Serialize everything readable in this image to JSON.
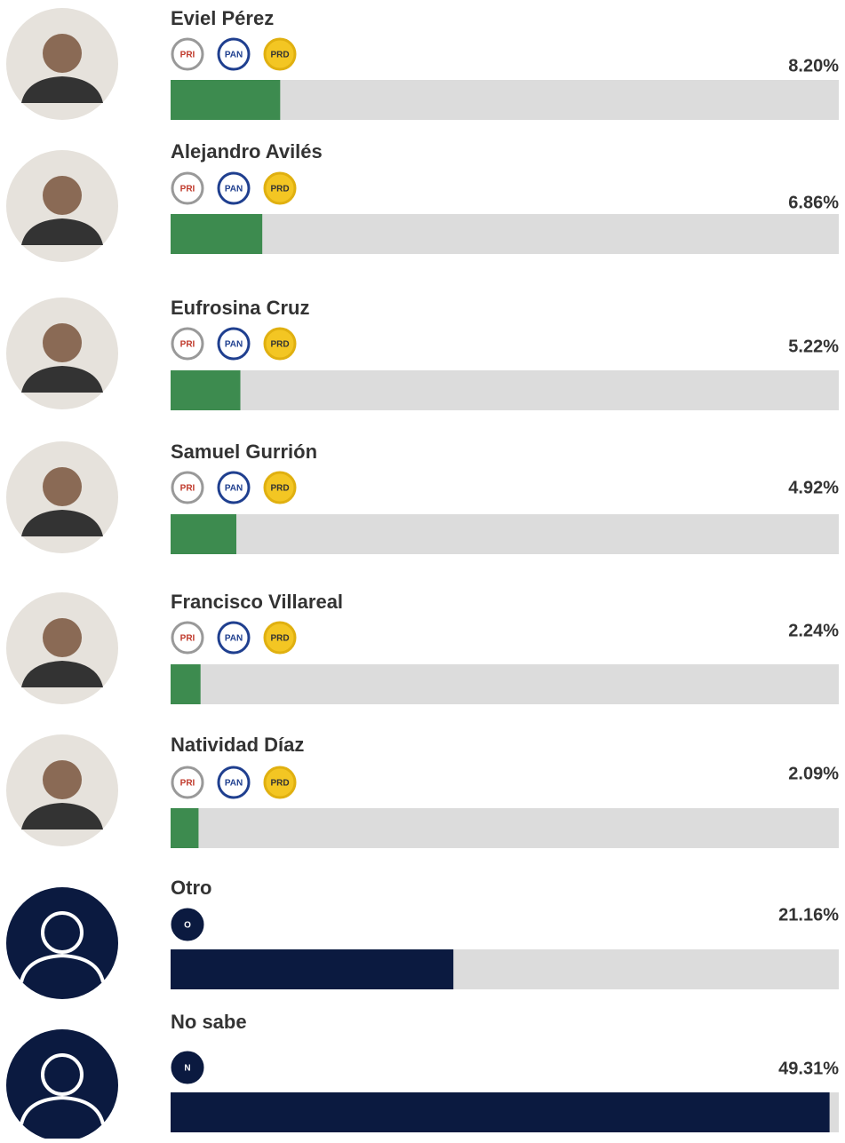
{
  "chart_data": {
    "type": "bar",
    "orientation": "horizontal",
    "categories": [
      "Eviel Pérez",
      "Alejandro Avilés",
      "Eufrosina Cruz",
      "Samuel Gurrión",
      "Francisco Villareal",
      "Natividad Díaz",
      "Otro",
      "No sabe"
    ],
    "values": [
      8.2,
      6.86,
      5.22,
      4.92,
      2.24,
      2.09,
      21.16,
      49.31
    ],
    "value_labels": [
      "8.20%",
      "6.86%",
      "5.22%",
      "4.92%",
      "2.24%",
      "2.09%",
      "21.16%",
      "49.31%"
    ],
    "colors": [
      "#3d8b4f",
      "#3d8b4f",
      "#3d8b4f",
      "#3d8b4f",
      "#3d8b4f",
      "#3d8b4f",
      "#0b1a40",
      "#0b1a40"
    ],
    "badges": [
      [
        "PRI",
        "PAN",
        "PRD"
      ],
      [
        "PRI",
        "PAN",
        "PRD"
      ],
      [
        "PRI",
        "PAN",
        "PRD"
      ],
      [
        "PRI",
        "PAN",
        "PRD"
      ],
      [
        "PRI",
        "PAN",
        "PRD"
      ],
      [
        "PRI",
        "PAN",
        "PRD"
      ],
      [
        "O"
      ],
      [
        "N"
      ]
    ],
    "xlim": [
      0,
      50
    ]
  }
}
